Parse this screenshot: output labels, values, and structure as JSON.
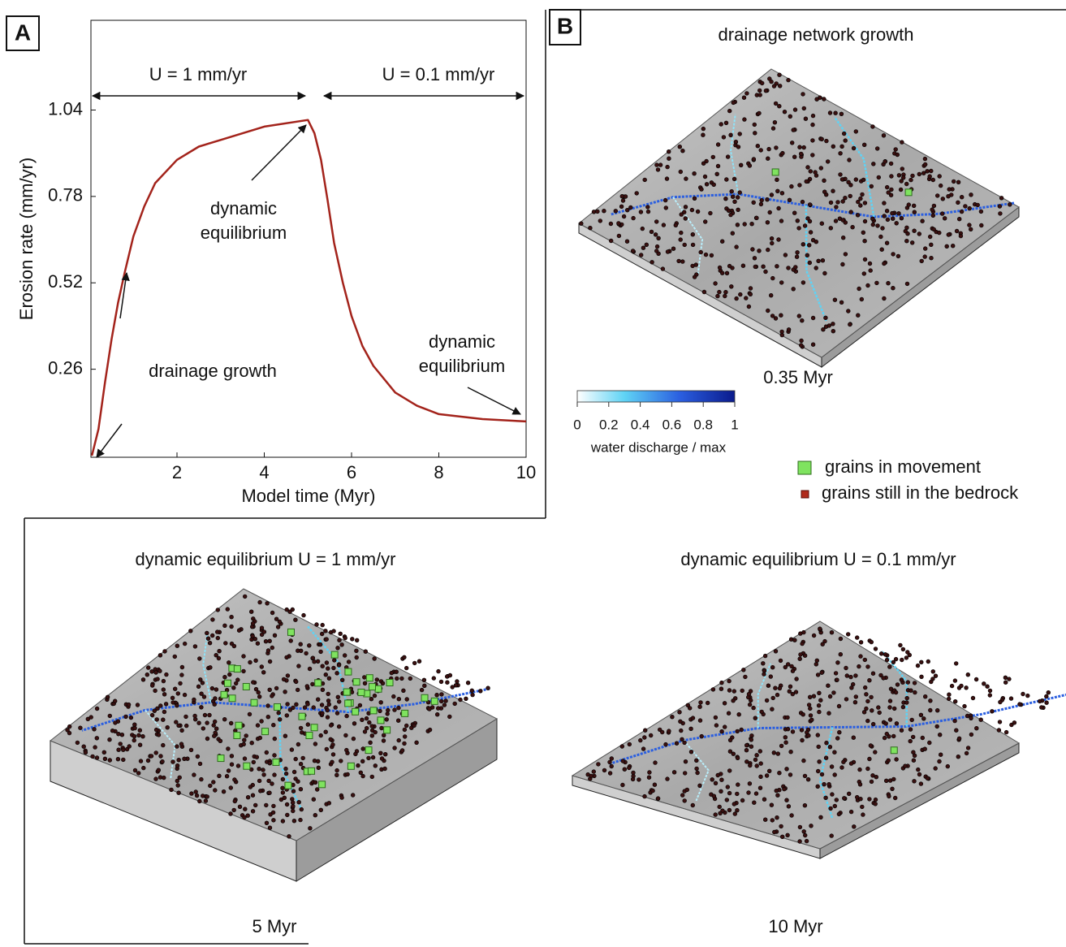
{
  "chart_data": {
    "type": "line",
    "color": "#a3231b",
    "x": [
      0.05,
      0.2,
      0.35,
      0.5,
      0.65,
      0.8,
      1,
      1.25,
      1.5,
      2,
      2.5,
      3,
      4,
      5,
      5.15,
      5.3,
      5.45,
      5.6,
      5.8,
      6,
      6.25,
      6.5,
      7,
      7.5,
      8,
      9,
      10
    ],
    "values": [
      0,
      0.08,
      0.22,
      0.35,
      0.46,
      0.55,
      0.66,
      0.75,
      0.82,
      0.89,
      0.93,
      0.95,
      0.99,
      1.01,
      0.97,
      0.89,
      0.77,
      0.64,
      0.52,
      0.42,
      0.33,
      0.27,
      0.19,
      0.15,
      0.125,
      0.11,
      0.103
    ],
    "xlim": [
      0,
      10
    ],
    "xticks": [
      2,
      4,
      6,
      8,
      10
    ],
    "ylim": [
      0,
      1.31
    ],
    "yticks": [
      0.26,
      0.52,
      0.78,
      1.04
    ],
    "xlabel": "Model time (Myr)",
    "ylabel": "Erosion rate (mm/yr)",
    "annotations": [
      {
        "lines": [
          "U = 1 mm/yr"
        ]
      },
      {
        "lines": [
          "U = 0.1 mm/yr"
        ]
      },
      {
        "lines": [
          "dynamic",
          "equilibrium"
        ]
      },
      {
        "lines": [
          "drainage growth"
        ]
      },
      {
        "lines": [
          "dynamic",
          "equilibrium"
        ]
      }
    ]
  },
  "panel_labels": [
    "A",
    "B"
  ],
  "maps": [
    {
      "title": "drainage network growth",
      "time": "0.35 Myr"
    },
    {
      "title": "dynamic equilibrium U = 1 mm/yr",
      "time": "5 Myr"
    },
    {
      "title": "dynamic equilibrium U = 0.1 mm/yr",
      "time": "10 Myr"
    }
  ],
  "colorbar": {
    "label": "water discharge / max",
    "ticks": [
      0,
      0.2,
      0.4,
      0.6,
      0.8,
      1
    ]
  },
  "legend": [
    "grains in movement",
    "grains still in the bedrock"
  ]
}
